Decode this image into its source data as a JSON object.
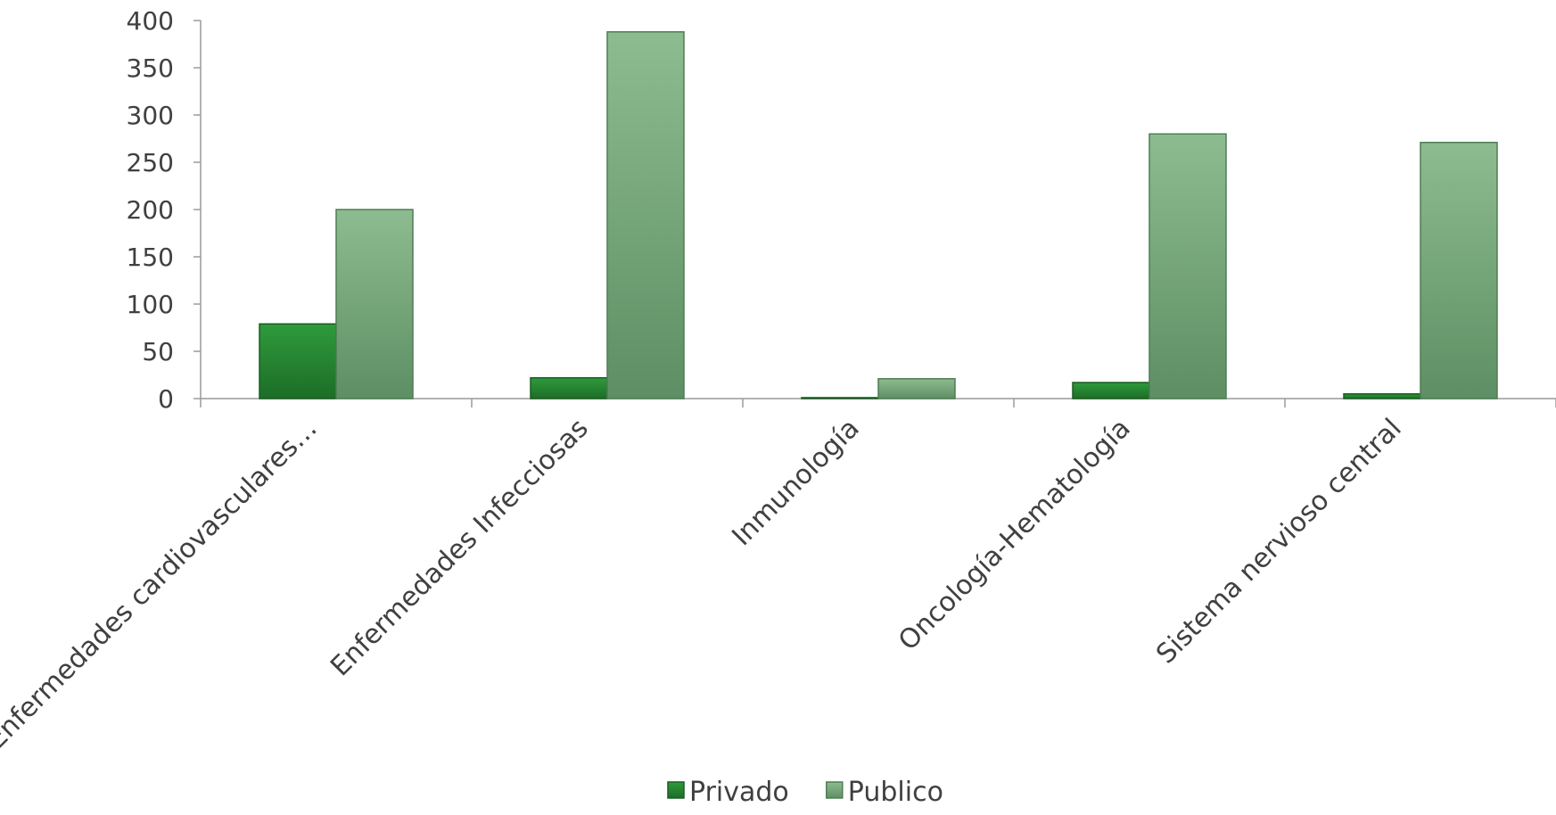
{
  "chart_data": {
    "type": "bar",
    "categories": [
      "Enfermedades cardiovasculares…",
      "Enfermedades Infecciosas",
      "Inmunología",
      "Oncología-Hematología",
      "Sistema nervioso central"
    ],
    "series": [
      {
        "name": "Privado",
        "values": [
          79,
          22,
          1,
          17,
          5
        ],
        "color": "#2e8b3a"
      },
      {
        "name": "Publico",
        "values": [
          200,
          388,
          21,
          280,
          271
        ],
        "color": "#7fb285"
      }
    ],
    "yticks": [
      0,
      50,
      100,
      150,
      200,
      250,
      300,
      350,
      400
    ],
    "ylim": [
      0,
      400
    ],
    "grid": false,
    "legend_position": "bottom"
  }
}
